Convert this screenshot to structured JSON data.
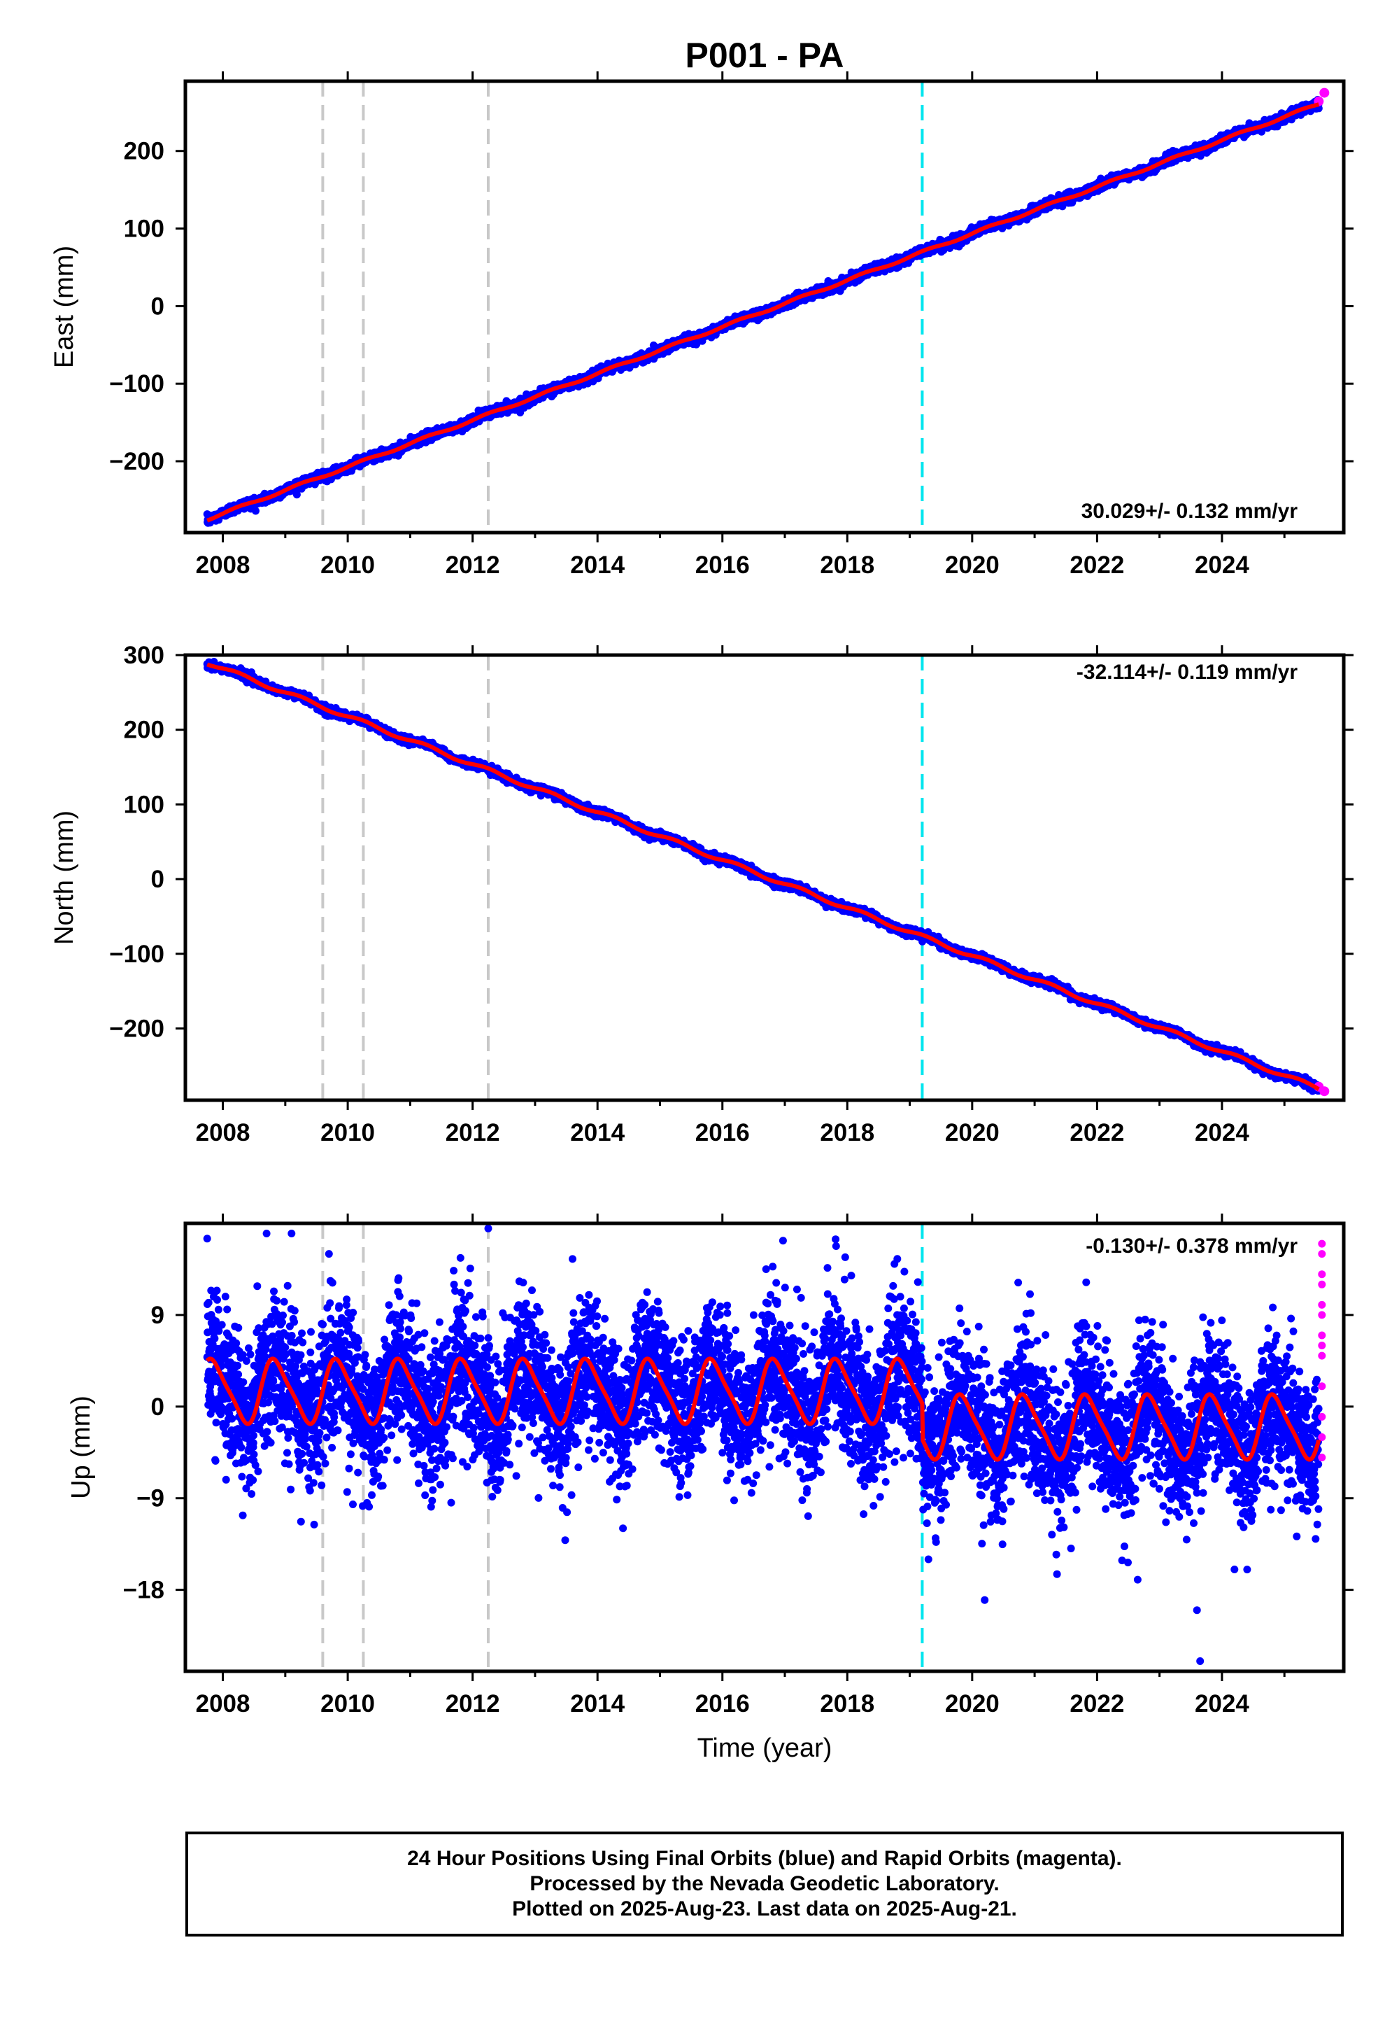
{
  "title": "P001 - PA",
  "colors": {
    "final_orbits": "#0000ff",
    "rapid_orbits": "#ff00ff",
    "model_fit": "#ff0000",
    "antenna_change": "#c8c8c8",
    "equipment_change": "#00e5ee"
  },
  "chart_data": [
    {
      "id": "east",
      "type": "scatter",
      "ylabel": "East (mm)",
      "xlabel": "",
      "rate": "30.029+/- 0.132 mm/yr",
      "xlim": [
        2007.4,
        2025.95
      ],
      "ylim": [
        -292,
        290
      ],
      "xticks": [
        2008,
        2010,
        2012,
        2014,
        2016,
        2018,
        2020,
        2022,
        2024
      ],
      "yticks": [
        -200,
        -100,
        0,
        100,
        200
      ],
      "ytick_labels": [
        "−200",
        "−100",
        "0",
        "100",
        "200"
      ],
      "trend": {
        "start": [
          2007.75,
          -275
        ],
        "end": [
          2025.6,
          262
        ]
      },
      "rapid_end": [
        2025.55,
        2025.64
      ],
      "rapid_end_values": [
        264,
        275
      ],
      "noise_mm": 3,
      "seasonal_amp_mm": 1.5
    },
    {
      "id": "north",
      "type": "scatter",
      "ylabel": "North (mm)",
      "xlabel": "",
      "rate": "-32.114+/- 0.119 mm/yr",
      "xlim": [
        2007.4,
        2025.95
      ],
      "ylim": [
        -296,
        300
      ],
      "xticks": [
        2008,
        2010,
        2012,
        2014,
        2016,
        2018,
        2020,
        2022,
        2024
      ],
      "yticks": [
        -200,
        -100,
        0,
        100,
        200,
        300
      ],
      "ytick_labels": [
        "−200",
        "−100",
        "0",
        "100",
        "200",
        "300"
      ],
      "trend": {
        "start": [
          2007.75,
          290
        ],
        "end": [
          2025.6,
          -282
        ]
      },
      "rapid_end": [
        2025.55,
        2025.64
      ],
      "rapid_end_values": [
        -278,
        -284
      ],
      "noise_mm": 2.5,
      "seasonal_amp_mm": 2.5
    },
    {
      "id": "up",
      "type": "scatter",
      "ylabel": "Up (mm)",
      "xlabel": "Time (year)",
      "rate": "-0.130+/- 0.378 mm/yr",
      "xlim": [
        2007.4,
        2025.95
      ],
      "ylim": [
        -26,
        18
      ],
      "xticks": [
        2008,
        2010,
        2012,
        2014,
        2016,
        2018,
        2020,
        2022,
        2024
      ],
      "yticks": [
        -18,
        -9,
        0,
        9
      ],
      "ytick_labels": [
        "−18",
        "−9",
        "0",
        "9"
      ],
      "seasonal_fit": {
        "offset_before_2019_2": 1.5,
        "offset_after_2019_2": -2.0,
        "annual_amp_mm": 3.0,
        "phase_peak_fraction": 0.85
      },
      "scatter_sd_mm": 3.5,
      "outliers": [
        [
          2007.75,
          16.5
        ],
        [
          2008.7,
          17
        ],
        [
          2009.1,
          17
        ],
        [
          2009.7,
          15
        ],
        [
          2012.25,
          17.5
        ],
        [
          2013.6,
          14.5
        ],
        [
          2016.7,
          13.5
        ],
        [
          2019.3,
          -15
        ],
        [
          2020.2,
          -19
        ],
        [
          2023.6,
          -20
        ],
        [
          2023.65,
          -25
        ],
        [
          2024.2,
          -16
        ],
        [
          2022.65,
          -17
        ],
        [
          2025.5,
          -13
        ]
      ],
      "rapid_values": [
        16,
        15,
        13,
        12,
        10,
        9,
        7,
        6,
        5,
        2,
        -1,
        -3,
        -5
      ]
    }
  ],
  "antenna_changes": [
    2009.6,
    2010.25,
    2012.25
  ],
  "equipment_change": [
    2019.2
  ],
  "xtick_labels": [
    "2008",
    "2010",
    "2012",
    "2014",
    "2016",
    "2018",
    "2020",
    "2022",
    "2024"
  ],
  "footer": {
    "line1": "24 Hour Positions Using Final Orbits (blue) and Rapid Orbits (magenta).",
    "line2": "Processed by the Nevada Geodetic Laboratory.",
    "line3": "Plotted on 2025-Aug-23. Last data on 2025-Aug-21."
  }
}
